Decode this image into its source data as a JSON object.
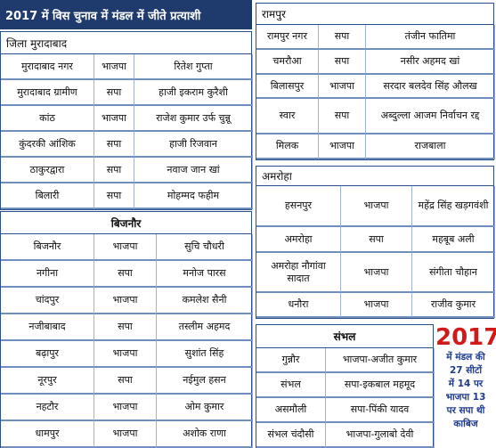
{
  "header": {
    "title": "2017 में विस चुनाव में मंडल में जीते प्रत्याशी"
  },
  "sections": [
    {
      "title": "जिला मुरादाबाद",
      "rows": [
        [
          "मुरादाबाद नगर",
          "भाजपा",
          "रितेश गुप्ता"
        ],
        [
          "मुरादाबाद ग्रामीण",
          "सपा",
          "हाजी इकराम कुरैशी"
        ],
        [
          "कांठ",
          "भाजपा",
          "राजेश कुमार उर्फ चुन्नू"
        ],
        [
          "कुंदरकी आंशिक",
          "सपा",
          "हाजी रिजवान"
        ],
        [
          "ठाकुरद्वारा",
          "सपा",
          "नवाज जान खां"
        ],
        [
          "बिलारी",
          "सपा",
          "मोहम्मद फहीम"
        ]
      ]
    },
    {
      "title": "बिजनौर",
      "rows": [
        [
          "बिजनौर",
          "भाजपा",
          "सुचि चौधरी"
        ],
        [
          "नगीना",
          "सपा",
          "मनोज पारस"
        ],
        [
          "चांदपुर",
          "भाजपा",
          "कमलेश सैनी"
        ],
        [
          "नजीबाबाद",
          "सपा",
          "तस्लीम अहमद"
        ],
        [
          "बढ़ापुर",
          "भाजपा",
          "सुशांत सिंह"
        ],
        [
          "नूरपुर",
          "सपा",
          "नईमुल हसन"
        ],
        [
          "नहटौर",
          "भाजपा",
          "ओम कुमार"
        ],
        [
          "धामपुर",
          "भाजपा",
          "अशोक राणा"
        ]
      ]
    },
    {
      "title": "रामपुर",
      "rows": [
        [
          "रामपुर नगर",
          "सपा",
          "तंजीन फातिमा"
        ],
        [
          "चमरौआ",
          "सपा",
          "नसीर अहमद खां"
        ],
        [
          "बिलासपुर",
          "भाजपा",
          "सरदार बलदेव सिंह औलख"
        ],
        [
          "स्वार",
          "सपा",
          "अब्दुल्ला आजम निर्वाचन रद्द"
        ],
        [
          "मिलक",
          "भाजपा",
          "राजबाला"
        ]
      ]
    },
    {
      "title": "अमरोहा",
      "rows": [
        [
          "हसनपुर",
          "भाजपा",
          "महेंद्र सिंह खड़गवंशी"
        ],
        [
          "अमरोहा",
          "सपा",
          "महबूब अली"
        ],
        [
          "अमरोहा नौगांवा सादात",
          "भाजपा",
          "संगीता चौहान"
        ],
        [
          "धनौरा",
          "भाजपा",
          "राजीव कुमार"
        ]
      ]
    },
    {
      "title": "संभल",
      "rows": [
        [
          "गुन्नौर",
          "भाजपा-अजीत कुमार"
        ],
        [
          "संभल",
          "सपा-इकबाल महमूद"
        ],
        [
          "असमौली",
          "सपा-पिंकी यादव"
        ],
        [
          "संभल चंदौसी",
          "भाजपा-गुलाबो देवी"
        ]
      ]
    }
  ],
  "callout": {
    "year": "2017",
    "lines": [
      "में मंडल की",
      "27 सीटों",
      "में 14 पर",
      "भाजपा 13",
      "पर सपा थी",
      "काबिज"
    ]
  }
}
